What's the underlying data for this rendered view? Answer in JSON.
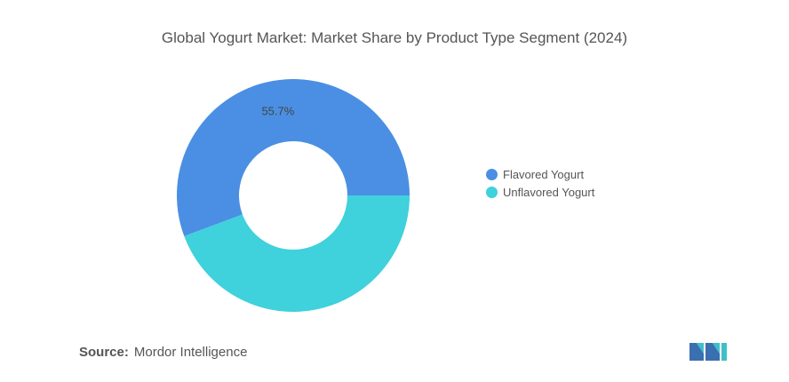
{
  "title": "Global Yogurt Market: Market Share by Product Type Segment (2024)",
  "source": {
    "label": "Source:",
    "value": "Mordor Intelligence"
  },
  "chart_data": {
    "type": "pie",
    "subtype": "donut",
    "title": "Global Yogurt Market: Market Share by Product Type Segment (2024)",
    "categories": [
      "Flavored Yogurt",
      "Unflavored Yogurt"
    ],
    "values": [
      55.7,
      44.3
    ],
    "data_labels": [
      "55.7%",
      ""
    ],
    "colors": [
      "#4a8fe3",
      "#3fd1dc"
    ],
    "legend_position": "right"
  },
  "logo": {
    "name": "mordor-intelligence-logo",
    "colors": [
      "#3a6fb0",
      "#3fc0c8"
    ]
  }
}
